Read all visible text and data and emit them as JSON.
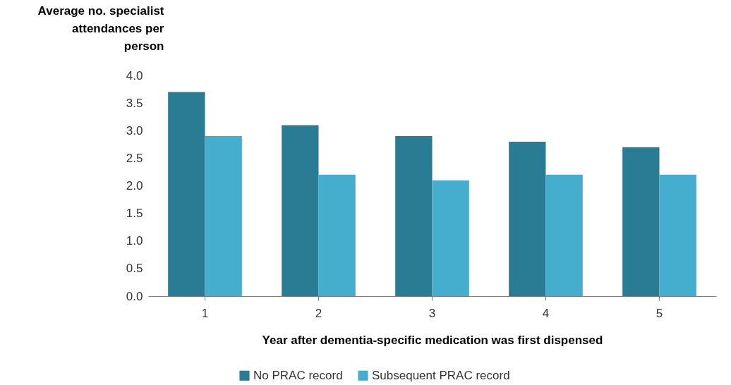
{
  "chart_data": {
    "type": "bar",
    "xlabel": "Year after dementia-specific  medication  was first dispensed",
    "ylabel": "Average no. specialist attendances per person",
    "categories": [
      "1",
      "2",
      "3",
      "4",
      "5"
    ],
    "series": [
      {
        "name": "No PRAC record",
        "color": "#2a7b94",
        "values": [
          3.7,
          3.1,
          2.9,
          2.8,
          2.7
        ]
      },
      {
        "name": "Subsequent PRAC record",
        "color": "#45aecf",
        "values": [
          2.9,
          2.2,
          2.1,
          2.2,
          2.2
        ]
      }
    ],
    "ylim": [
      0,
      4
    ],
    "yticks": [
      {
        "value": 0,
        "label": "0.0"
      },
      0.5,
      {
        "value": 1,
        "label": "1.0"
      },
      1.5,
      {
        "value": 2,
        "label": "2.0"
      },
      2.5,
      {
        "value": 3,
        "label": "3.0"
      },
      3.5,
      {
        "value": 4,
        "label": "4.0"
      }
    ],
    "grid": false,
    "legend": "bottom"
  }
}
